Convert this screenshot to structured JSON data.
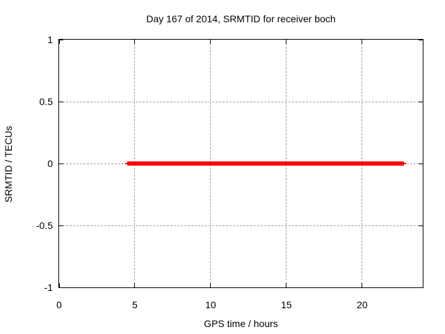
{
  "chart_data": {
    "type": "line",
    "title": "Day 167 of 2014, SRMTID for receiver boch",
    "xlabel": "GPS time / hours",
    "ylabel": "SRMTID / TECUs",
    "xlim": [
      0,
      24
    ],
    "ylim": [
      -1,
      1
    ],
    "grid": true,
    "grid_style": "dashed",
    "legend": "none",
    "xticks": [
      {
        "value": 0,
        "label": "0"
      },
      {
        "value": 5,
        "label": "5"
      },
      {
        "value": 10,
        "label": "10"
      },
      {
        "value": 15,
        "label": "15"
      },
      {
        "value": 20,
        "label": "20"
      }
    ],
    "yticks": [
      {
        "value": 1,
        "label": "1"
      },
      {
        "value": 0.5,
        "label": "0.5"
      },
      {
        "value": 0,
        "label": "0"
      },
      {
        "value": -0.5,
        "label": "-0.5"
      },
      {
        "value": -1,
        "label": "-1"
      }
    ],
    "series": [
      {
        "name": "SRMTID",
        "color": "#ff0000",
        "y_value": 0,
        "x_range": [
          4.35,
          22.9
        ],
        "segments": [
          {
            "x1": 4.35,
            "x2": 4.5,
            "line_width": 2
          },
          {
            "x1": 4.5,
            "x2": 22.75,
            "line_width": 6
          },
          {
            "x1": 22.75,
            "x2": 22.9,
            "line_width": 2
          }
        ]
      }
    ]
  },
  "colors": {
    "background": "#ffffff",
    "axis": "#000000",
    "text": "#000000",
    "grid": "#a0a0a0",
    "series_red": "#ff0000"
  }
}
